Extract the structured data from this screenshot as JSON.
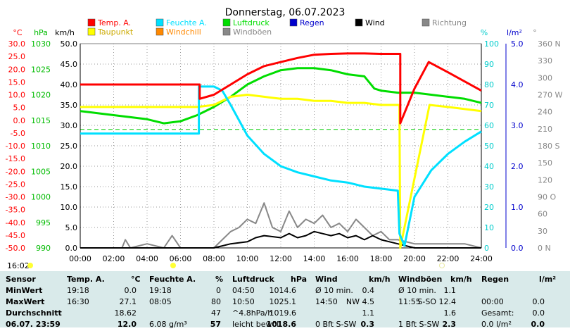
{
  "chart_data": {
    "type": "line",
    "title": "Donnerstag, 06.07.2023",
    "x": {
      "min": 0,
      "max": 24,
      "ticks": [
        "00:00",
        "02:00",
        "04:00",
        "06:00",
        "08:00",
        "10:00",
        "12:00",
        "14:00",
        "16:00",
        "18:00",
        "20:00",
        "22:00",
        "24:00"
      ]
    },
    "legend": [
      {
        "label": "Temp. A.",
        "color": "#ff0000"
      },
      {
        "label": "Feuchte A.",
        "color": "#00e0ff"
      },
      {
        "label": "Luftdruck",
        "color": "#00dd00"
      },
      {
        "label": "Regen",
        "color": "#0000cc"
      },
      {
        "label": "Wind",
        "color": "#000000"
      },
      {
        "label": "Richtung",
        "color": "#888888"
      },
      {
        "label": "Taupunkt",
        "color": "#ffff00"
      },
      {
        "label": "Windchill",
        "color": "#ff8800"
      },
      {
        "label": "Windböen",
        "color": "#888888"
      }
    ],
    "axes": {
      "temp": {
        "unit": "°C",
        "color": "#ff0000",
        "range": [
          -50,
          30
        ],
        "ticks": [
          "30.0",
          "25.0",
          "20.0",
          "15.0",
          "10.0",
          "5.0",
          "0.0",
          "-5.0",
          "-10.0",
          "-15.0",
          "-20.0",
          "-25.0",
          "-30.0",
          "-35.0",
          "-40.0",
          "-45.0",
          "-50.0"
        ]
      },
      "pressure": {
        "unit": "hPa",
        "color": "#00bb00",
        "range": [
          990,
          1030
        ],
        "ticks": [
          "1030",
          "1025",
          "1020",
          "1015",
          "1010",
          "1005",
          "1000",
          "995",
          "990"
        ]
      },
      "wind": {
        "unit": "km/h",
        "color": "#000000",
        "range": [
          0,
          50
        ],
        "ticks": [
          "50.0",
          "45.0",
          "40.0",
          "35.0",
          "30.0",
          "25.0",
          "20.0",
          "15.0",
          "10.0",
          "5.0",
          "0.0"
        ]
      },
      "humidity": {
        "unit": "%",
        "color": "#00cccc",
        "range": [
          0,
          100
        ],
        "ticks": [
          "100",
          "90",
          "80",
          "70",
          "60",
          "50",
          "40",
          "30",
          "20",
          "10",
          "0"
        ]
      },
      "rain": {
        "unit": "l/m²",
        "color": "#0000cc",
        "range": [
          0,
          5
        ],
        "ticks": [
          "5.0",
          "4.0",
          "3.0",
          "2.0",
          "1.0",
          "0.0"
        ]
      },
      "direction": {
        "unit": "°",
        "color": "#888888",
        "range": [
          0,
          360
        ],
        "ticks": [
          "360 N",
          "330",
          "300",
          "270 W",
          "240",
          "210",
          "180 S",
          "150",
          "120",
          "90 O",
          "60",
          "30",
          "0 N"
        ]
      }
    },
    "reference_line": {
      "series": "Feuchte A.",
      "value": 58,
      "style": "dashed",
      "color": "#00cc00"
    },
    "series": [
      {
        "name": "Temp. A.",
        "axis": "wind",
        "color": "#ff0000",
        "x": [
          0,
          7.15,
          7.15,
          8,
          9,
          10,
          11,
          12,
          13,
          14,
          15,
          16,
          17,
          18,
          19.15,
          19.15,
          20,
          20.85,
          22,
          24
        ],
        "y": [
          40,
          40,
          36.5,
          37.5,
          40,
          42.5,
          44.5,
          45.5,
          46.5,
          47.3,
          47.5,
          47.6,
          47.6,
          47.5,
          47.5,
          30.5,
          39,
          45.5,
          43,
          38.5
        ]
      },
      {
        "name": "Feuchte A.",
        "axis": "humidity",
        "color": "#00e0ff",
        "x": [
          0,
          7.1,
          7.1,
          8,
          8.5,
          9,
          10,
          11,
          12,
          13,
          14,
          15,
          16,
          17,
          18,
          19,
          19.1,
          19.4,
          20,
          21,
          22,
          23,
          24
        ],
        "y": [
          56,
          56,
          79,
          79,
          77,
          70,
          55,
          46,
          40,
          37,
          35,
          33,
          32,
          30,
          29,
          28,
          7,
          1,
          25,
          38,
          46,
          52,
          57
        ]
      },
      {
        "name": "Luftdruck",
        "axis": "wind",
        "color": "#00dd00",
        "x": [
          0,
          1,
          2,
          3,
          4,
          5,
          6,
          7,
          8,
          9,
          10,
          11,
          12,
          13,
          14,
          15,
          16,
          17,
          17.6,
          18,
          19,
          20,
          21,
          22,
          23,
          24
        ],
        "y": [
          33.5,
          33,
          32.5,
          32,
          31.5,
          30.5,
          31,
          32.5,
          34.5,
          37,
          40,
          42,
          43.5,
          44,
          44,
          43.5,
          42.5,
          42,
          39,
          38.5,
          38,
          38,
          37.5,
          37,
          36.5,
          35.5
        ]
      },
      {
        "name": "Taupunkt",
        "axis": "wind",
        "color": "#ffff00",
        "x": [
          0,
          7,
          8,
          9,
          10,
          11,
          12,
          13,
          14,
          15,
          16,
          17,
          18,
          19.1,
          19.15,
          20.9,
          22,
          24
        ],
        "y": [
          34.5,
          34.5,
          35,
          37,
          37.5,
          37,
          36.5,
          36.5,
          36,
          36,
          35.5,
          35.5,
          35,
          35,
          0,
          35,
          34.5,
          33.5
        ]
      },
      {
        "name": "Wind",
        "axis": "wind",
        "color": "#000000",
        "x": [
          0,
          8,
          8.5,
          9,
          10,
          10.5,
          11,
          12,
          12.5,
          13,
          13.5,
          14,
          14.5,
          15,
          15.5,
          16,
          16.5,
          17,
          17.5,
          18,
          18.5,
          19,
          20,
          24
        ],
        "y": [
          0,
          0,
          0.5,
          1,
          1.5,
          2.5,
          3,
          2.5,
          3.5,
          2.5,
          3,
          4,
          3.5,
          3,
          3.5,
          2.5,
          3,
          2,
          3,
          2,
          1.5,
          1,
          0,
          0
        ]
      },
      {
        "name": "Windböen",
        "axis": "wind",
        "color": "#888888",
        "x": [
          0,
          2.5,
          2.7,
          3,
          4,
          5,
          5.5,
          6,
          8,
          8.5,
          9,
          9.5,
          10,
          10.5,
          11,
          11.5,
          12,
          12.5,
          13,
          13.5,
          14,
          14.5,
          15,
          15.5,
          16,
          16.5,
          17,
          17.5,
          18,
          18.5,
          19,
          20,
          22,
          23,
          24
        ],
        "y": [
          0,
          0,
          2,
          0,
          1,
          0,
          3,
          0,
          0,
          2,
          4,
          5,
          7,
          6,
          11,
          5,
          4,
          9,
          5,
          7,
          6,
          8,
          5,
          6,
          4,
          7,
          5,
          3,
          4,
          2,
          2,
          1,
          1,
          1,
          0
        ]
      }
    ]
  },
  "status": {
    "time": "16:02"
  },
  "stats": {
    "headers": [
      "Sensor",
      "Temp. A.",
      "°C",
      "Feuchte A.",
      "%",
      "Luftdruck",
      "hPa",
      "Wind",
      "km/h",
      "Windböen",
      "km/h",
      "Regen",
      "l/m²"
    ],
    "rows": [
      {
        "label": "MinWert",
        "cells": [
          "19:18",
          "0.0",
          "19:18",
          "0",
          "04:50",
          "1014.6",
          "Ø 10 min.",
          "0.4",
          "Ø 10 min.",
          "1.1",
          "",
          ""
        ]
      },
      {
        "label": "MaxWert",
        "cells": [
          "16:30",
          "27.1",
          "08:05",
          "80",
          "10:50",
          "1025.1",
          "14:50",
          "NW 4.5",
          "11:55",
          "S-SO 12.4",
          "00:00",
          "0.0"
        ]
      },
      {
        "label": "Durchschnitt",
        "cells": [
          "",
          "18.62",
          "",
          "47",
          "^4.8hPa/h",
          "1019.6",
          "",
          "1.1",
          "",
          "1.6",
          "Gesamt:",
          "0.0"
        ]
      },
      {
        "label": "06.07. 23:59",
        "cells": [
          "",
          "12.0",
          "6.08 g/m³",
          "57",
          "leicht bewöl",
          "1018.6",
          "0 Bft S-SW",
          "0.3",
          "1 Bft S-SW",
          "2.3",
          "0.0 l/m²",
          "0.0"
        ]
      }
    ]
  }
}
